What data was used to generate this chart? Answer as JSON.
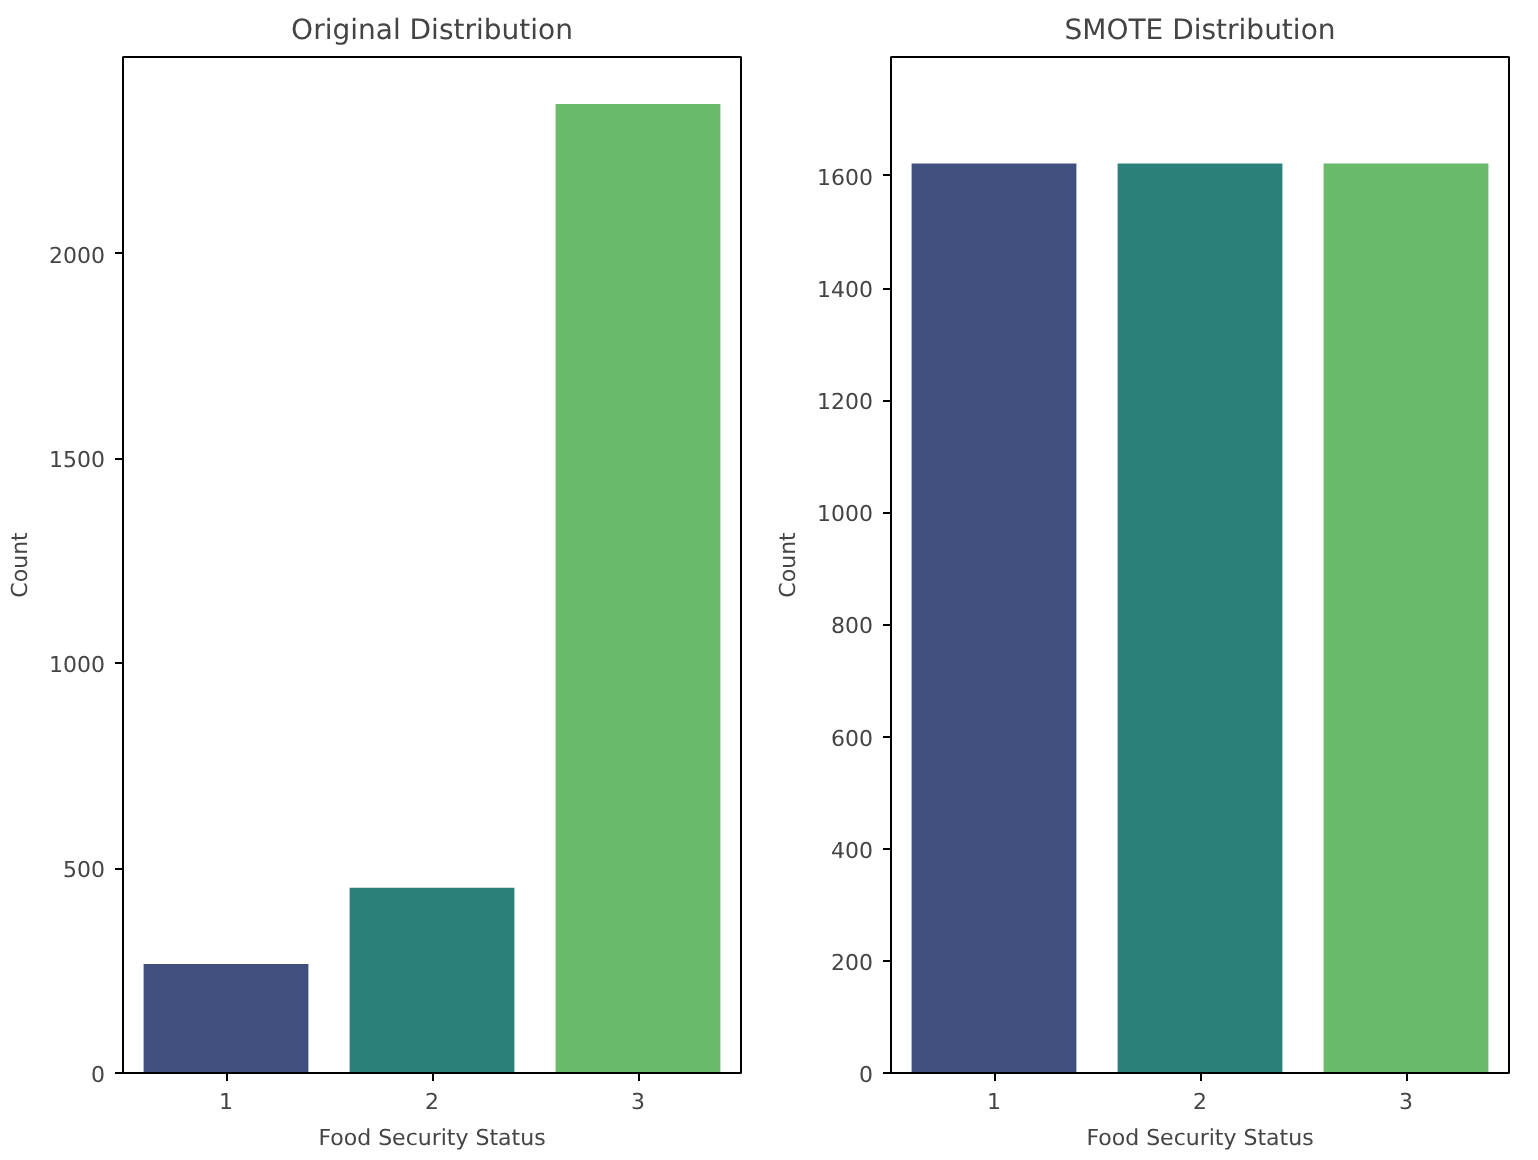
{
  "chart_data": [
    {
      "type": "bar",
      "title": "Original Distribution",
      "xlabel": "Food Security Status",
      "ylabel": "Count",
      "categories": [
        "1",
        "2",
        "3"
      ],
      "values": [
        266,
        452,
        2365
      ],
      "colors": [
        "#414f7f",
        "#2a8179",
        "#6aba6b"
      ],
      "ylim": [
        0,
        2480
      ],
      "yticks": [
        0,
        500,
        1000,
        1500,
        2000
      ],
      "grid": false,
      "legend": false
    },
    {
      "type": "bar",
      "title": "SMOTE Distribution",
      "xlabel": "Food Security Status",
      "ylabel": "Count",
      "categories": [
        "1",
        "2",
        "3"
      ],
      "values": [
        1622,
        1622,
        1622
      ],
      "colors": [
        "#414f7f",
        "#2a8179",
        "#6aba6b"
      ],
      "ylim": [
        0,
        1812
      ],
      "yticks": [
        0,
        200,
        400,
        600,
        800,
        1000,
        1200,
        1400,
        1600
      ],
      "grid": false,
      "legend": false
    }
  ]
}
